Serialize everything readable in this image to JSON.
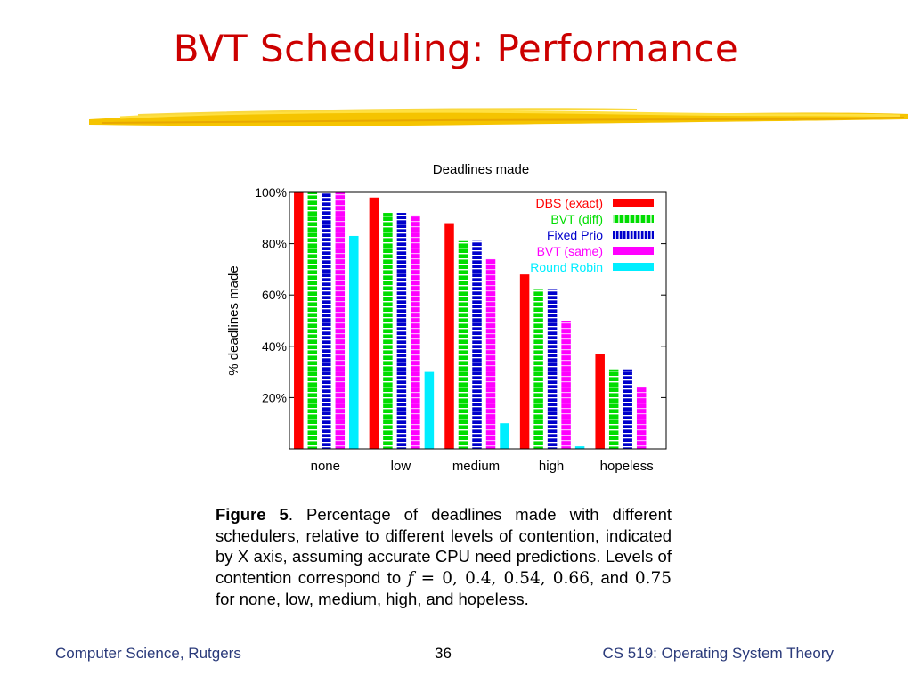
{
  "slide": {
    "title": "BVT Scheduling: Performance",
    "footer_left": "Computer Science, Rutgers",
    "page_number": "36",
    "footer_right": "CS 519: Operating System Theory"
  },
  "caption": {
    "label": "Figure 5",
    "text1": ".  Percentage of deadlines made with different schedulers, relative to different levels of contention, indicated by X axis, assuming accurate CPU need predictions.  Levels of contention correspond to ",
    "f_var": "f",
    "f_eq": " = ",
    "f_values": "0, 0.4, 0.54, 0.66",
    "and_text": ", and ",
    "f_last": "0.75",
    "text2": " for none, low, medium, high, and hopeless."
  },
  "chart_data": {
    "type": "bar",
    "title": "Deadlines made",
    "xlabel": "",
    "ylabel": "% deadlines made",
    "categories": [
      "none",
      "low",
      "medium",
      "high",
      "hopeless"
    ],
    "ylim": [
      0,
      100
    ],
    "yticks": [
      "20%",
      "40%",
      "60%",
      "80%",
      "100%"
    ],
    "legend_position": "top-right",
    "series": [
      {
        "name": "DBS (exact)",
        "color": "#ff0000",
        "pattern": "solid",
        "values": [
          100,
          98,
          88,
          68,
          37
        ]
      },
      {
        "name": "BVT (diff)",
        "color": "#00dd00",
        "pattern": "dashed",
        "values": [
          100,
          92,
          81,
          62,
          31
        ]
      },
      {
        "name": "Fixed Prio",
        "color": "#0000cc",
        "pattern": "dashed",
        "values": [
          100,
          92,
          81,
          62,
          31
        ]
      },
      {
        "name": "BVT (same)",
        "color": "#ff00ff",
        "pattern": "dashed",
        "values": [
          100,
          91,
          74,
          50,
          24
        ]
      },
      {
        "name": "Round Robin",
        "color": "#00eeff",
        "pattern": "solid",
        "values": [
          83,
          30,
          10,
          1,
          0
        ]
      }
    ]
  }
}
